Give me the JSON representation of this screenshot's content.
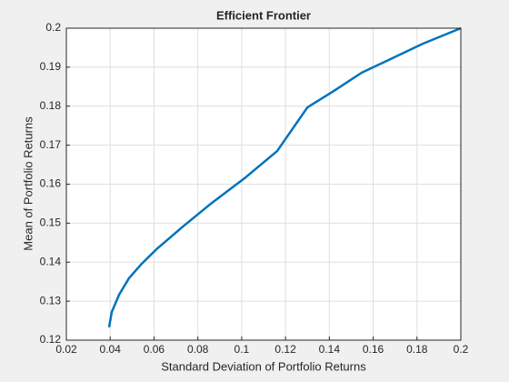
{
  "chart_data": {
    "type": "line",
    "title": "Efficient  Frontier",
    "xlabel": "Standard Deviation of Portfolio Returns",
    "ylabel": "Mean of Portfolio Returns",
    "x": [
      0.0395,
      0.0407,
      0.0441,
      0.0486,
      0.0544,
      0.0611,
      0.0727,
      0.0864,
      0.1017,
      0.1162,
      0.13,
      0.142,
      0.1548,
      0.168,
      0.1826,
      0.2
    ],
    "series": [
      {
        "color": "#0072bd",
        "values": [
          0.1233,
          0.1272,
          0.1317,
          0.1359,
          0.1396,
          0.1433,
          0.1489,
          0.1552,
          0.1617,
          0.1685,
          0.1797,
          0.1839,
          0.1886,
          0.1921,
          0.196,
          0.2
        ]
      }
    ],
    "xlim": [
      0.02,
      0.2
    ],
    "xticks": [
      0.02,
      0.04,
      0.06,
      0.08,
      0.1,
      0.12,
      0.14,
      0.16,
      0.18,
      0.2
    ],
    "ylim": [
      0.12,
      0.2
    ],
    "yticks": [
      0.12,
      0.13,
      0.14,
      0.15,
      0.16,
      0.17,
      0.18,
      0.19,
      0.2
    ],
    "grid": true
  }
}
